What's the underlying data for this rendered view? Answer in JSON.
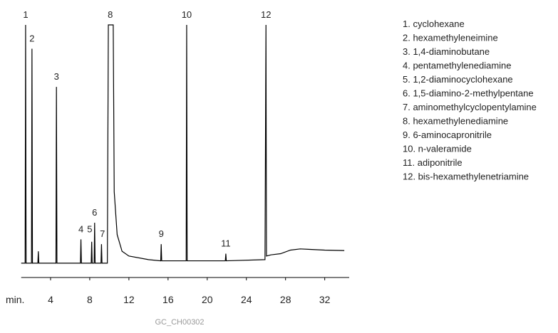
{
  "chart_data": {
    "type": "line",
    "color": "#000000",
    "x_label": "min.",
    "xlim": [
      1,
      34.5
    ],
    "xticks": [
      4,
      8,
      12,
      16,
      20,
      24,
      28,
      32
    ],
    "ylim": [
      -6,
      100
    ],
    "x": [
      1.0,
      1.4,
      1.45,
      1.5,
      2.05,
      2.1,
      2.15,
      2.7,
      2.75,
      2.8,
      4.55,
      4.6,
      4.65,
      7.05,
      7.1,
      7.15,
      8.15,
      8.2,
      8.25,
      8.45,
      8.5,
      8.55,
      9.15,
      9.2,
      9.25,
      9.8,
      9.9,
      10.4,
      10.5,
      10.8,
      11.3,
      12,
      14,
      15.25,
      15.3,
      15.35,
      17.85,
      17.9,
      17.95,
      21.85,
      21.9,
      21.95,
      25.9,
      26.0,
      26.05,
      26.5,
      27.5,
      28.5,
      29.5,
      30.5,
      32,
      34
    ],
    "values": [
      0,
      0,
      100,
      0,
      0,
      90,
      0,
      0,
      5,
      0,
      0,
      74,
      0,
      0,
      10,
      0,
      0,
      9,
      0,
      0,
      17,
      0,
      0,
      8,
      0,
      0,
      100,
      100,
      30,
      12,
      5,
      3,
      1.5,
      1,
      8,
      1,
      1,
      100,
      1,
      1,
      4,
      1,
      1.5,
      100,
      3,
      3.5,
      4,
      5.5,
      6,
      5.8,
      5.5,
      5.3
    ],
    "annotations": [
      {
        "text": "1",
        "x": 1.45,
        "y": 100
      },
      {
        "text": "2",
        "x": 2.1,
        "y": 90
      },
      {
        "text": "3",
        "x": 4.6,
        "y": 74
      },
      {
        "text": "4",
        "x": 7.1,
        "y": 10
      },
      {
        "text": "5",
        "x": 8.0,
        "y": 10
      },
      {
        "text": "6",
        "x": 8.5,
        "y": 17
      },
      {
        "text": "7",
        "x": 9.3,
        "y": 8
      },
      {
        "text": "8",
        "x": 10.1,
        "y": 100
      },
      {
        "text": "9",
        "x": 15.3,
        "y": 8
      },
      {
        "text": "10",
        "x": 17.9,
        "y": 100
      },
      {
        "text": "11",
        "x": 21.9,
        "y": 4
      },
      {
        "text": "12",
        "x": 26.0,
        "y": 100
      }
    ],
    "legend_items": [
      "1. cyclohexane",
      "2. hexamethyleneimine",
      "3. 1,4-diaminobutane",
      "4. pentamethylenediamine",
      "5. 1,2-diaminocyclohexane",
      "6. 1,5-diamino-2-methylpentane",
      "7. aminomethylcyclopentylamine",
      "8. hexamethylenediamine",
      "9. 6-aminocapronitrile",
      "10. n-valeramide",
      "11. adiponitrile",
      "12. bis-hexamethylenetriamine"
    ],
    "footer": "GC_CH00302"
  }
}
